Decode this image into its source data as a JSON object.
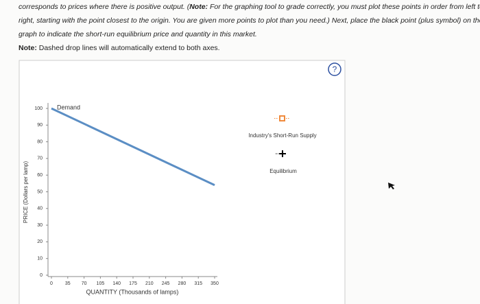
{
  "instructions": {
    "parts": [
      "corresponds to prices where there is positive output. (",
      "Note:",
      " For the graphing tool to grade correctly, you must plot these points in order from left to right, starting with the point closest to the origin. You are given more points to plot than you need.) Next, place the black point (plus symbol) on the graph to indicate the short-run equilibrium price and quantity in this market."
    ]
  },
  "note": {
    "label": "Note:",
    "text": " Dashed drop lines will automatically extend to both axes."
  },
  "help_icon": "?",
  "chart_data": {
    "type": "line",
    "x_label": "QUANTITY (Thousands of lamps)",
    "y_label": "PRICE (Dollars per lamp)",
    "x": [
      0,
      350
    ],
    "series": [
      {
        "name": "Demand",
        "color": "#5b8ec4",
        "values": [
          100,
          54
        ]
      }
    ],
    "xlim": [
      0,
      350
    ],
    "xticks": [
      0,
      35,
      70,
      105,
      140,
      175,
      210,
      245,
      280,
      315,
      350
    ],
    "ylim": [
      0,
      100
    ],
    "yticks": [
      0,
      10,
      20,
      30,
      40,
      50,
      60,
      70,
      80,
      90,
      100
    ],
    "legend_items": [
      {
        "name": "Industry's Short-Run Supply",
        "color": "#f08a3c"
      },
      {
        "name": "Equilibrium",
        "color": "#000000"
      }
    ]
  }
}
